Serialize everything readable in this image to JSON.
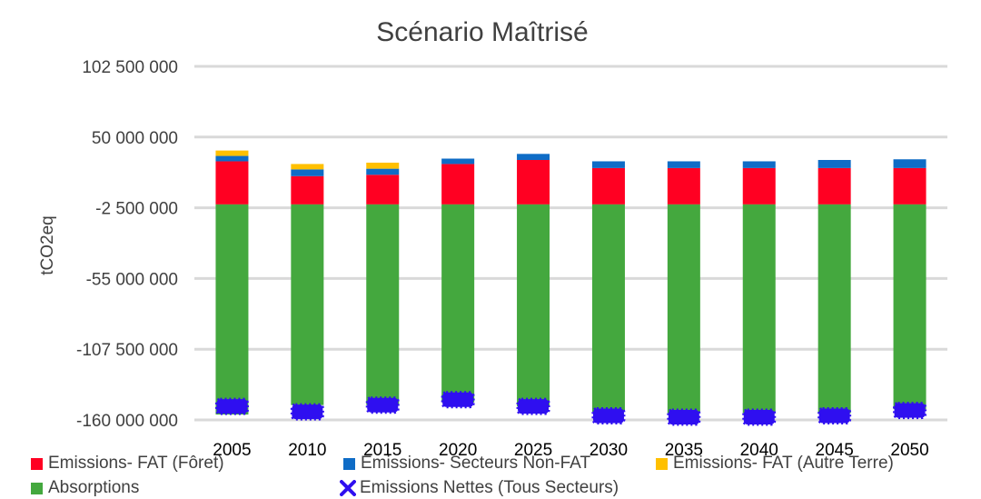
{
  "chart_data": {
    "type": "bar",
    "stacked": true,
    "title": "Scénario Maîtrisé",
    "ylabel": "tCO2eq",
    "xlabel": "",
    "categories": [
      "2005",
      "2010",
      "2015",
      "2020",
      "2025",
      "2030",
      "2035",
      "2040",
      "2045",
      "2050"
    ],
    "ylim": [
      -160000000,
      102500000
    ],
    "yticks": [
      102500000,
      50000000,
      -2500000,
      -55000000,
      -107500000,
      -160000000
    ],
    "ytick_labels": [
      "102 500 000",
      "50 000 000",
      "-2 500 000",
      "-55 000 000",
      "-107 500 000",
      "-160 000 000"
    ],
    "grid": true,
    "legend_position": "bottom",
    "series": [
      {
        "name": "Emissions- FAT (Fôret)",
        "color": "#ff0022",
        "values": [
          32000000,
          21000000,
          22000000,
          30000000,
          33000000,
          27000000,
          27000000,
          27000000,
          27000000,
          27000000
        ]
      },
      {
        "name": "Emissions- Secteurs Non-FAT",
        "color": "#0f6cc6",
        "values": [
          4000000,
          5000000,
          4500000,
          4000000,
          4500000,
          5000000,
          5000000,
          5000000,
          6000000,
          6500000
        ]
      },
      {
        "name": "Emissions- FAT (Autre Terre)",
        "color": "#ffc000",
        "values": [
          4000000,
          4000000,
          4500000,
          0,
          0,
          0,
          0,
          0,
          0,
          0
        ]
      },
      {
        "name": "Absorptions",
        "color": "#44a83e",
        "values": [
          -156000000,
          -149000000,
          -149000000,
          -147000000,
          -150000000,
          -154000000,
          -155000000,
          -155000000,
          -155000000,
          -152000000
        ]
      }
    ],
    "net_series": {
      "name": "Emissions Nettes (Tous Secteurs)",
      "color": "#2f0ff0",
      "values": [
        -150000000,
        -154000000,
        -149000000,
        -145000000,
        -150000000,
        -157000000,
        -158000000,
        -158000000,
        -157000000,
        -153000000
      ]
    }
  }
}
